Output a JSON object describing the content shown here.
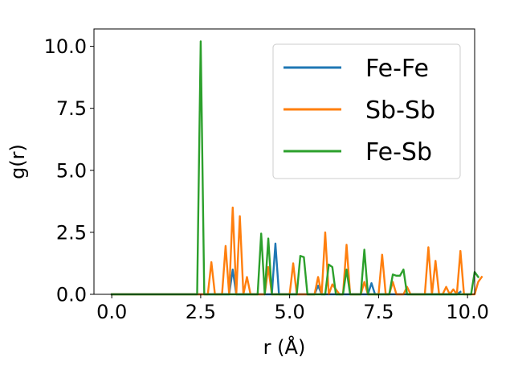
{
  "chart_data": {
    "type": "line",
    "xlabel": "r (Å)",
    "ylabel": "g(r)",
    "xlim": [
      -0.5,
      10.2
    ],
    "ylim": [
      0,
      10.7
    ],
    "xticks": [
      "0.0",
      "2.5",
      "5.0",
      "7.5",
      "10.0"
    ],
    "yticks": [
      "0.0",
      "2.5",
      "5.0",
      "7.5",
      "10.0"
    ],
    "grid": false,
    "legend_position": "top-right",
    "x_start": 0.0,
    "x_step": 0.1,
    "series": [
      {
        "name": "Fe-Fe",
        "color": "#1f77b4",
        "values": [
          0,
          0,
          0,
          0,
          0,
          0,
          0,
          0,
          0,
          0,
          0,
          0,
          0,
          0,
          0,
          0,
          0,
          0,
          0,
          0,
          0,
          0,
          0,
          0,
          0,
          0,
          0,
          0,
          0,
          0,
          0,
          0,
          0,
          0,
          1.0,
          0,
          0,
          0,
          0,
          0,
          0,
          0,
          0,
          0,
          0,
          0,
          2.05,
          0,
          0,
          0,
          0,
          0,
          0,
          0,
          0,
          0,
          0,
          0,
          0.35,
          0,
          0,
          0,
          0,
          0,
          0,
          0,
          0,
          0,
          0,
          0,
          0,
          0,
          0,
          0.45,
          0,
          0,
          0,
          0,
          0,
          0,
          0,
          0,
          0,
          0,
          0,
          0,
          0,
          0,
          0,
          0,
          0,
          0,
          0,
          0,
          0,
          0,
          0,
          0,
          0.1
        ]
      },
      {
        "name": "Sb-Sb",
        "color": "#ff7f0e",
        "values": [
          0,
          0,
          0,
          0,
          0,
          0,
          0,
          0,
          0,
          0,
          0,
          0,
          0,
          0,
          0,
          0,
          0,
          0,
          0,
          0,
          0,
          0,
          0,
          0,
          0,
          0,
          0,
          0,
          1.3,
          0,
          0,
          0,
          1.95,
          0,
          3.5,
          0,
          3.15,
          0,
          0.7,
          0,
          0,
          0,
          0,
          0,
          1.1,
          0,
          0,
          0,
          0,
          0,
          0,
          1.25,
          0,
          0,
          0,
          0,
          0,
          0,
          0.7,
          0,
          2.5,
          0,
          0.4,
          0.2,
          0,
          0,
          2.0,
          0,
          0,
          0,
          0,
          0.5,
          0,
          0,
          0,
          0,
          1.6,
          0,
          0,
          0.5,
          0,
          0,
          0,
          0.3,
          0,
          0,
          0,
          0,
          0,
          1.9,
          0,
          1.35,
          0,
          0,
          0.3,
          0,
          0.2,
          0,
          1.75,
          0,
          0,
          0,
          0,
          0.5,
          0.7
        ]
      },
      {
        "name": "Fe-Sb",
        "color": "#2ca02c",
        "values": [
          0,
          0,
          0,
          0,
          0,
          0,
          0,
          0,
          0,
          0,
          0,
          0,
          0,
          0,
          0,
          0,
          0,
          0,
          0,
          0,
          0,
          0,
          0,
          0,
          0,
          10.2,
          0,
          0,
          0,
          0,
          0,
          0,
          0,
          0,
          0,
          0,
          0,
          0,
          0,
          0,
          0,
          0,
          2.45,
          0,
          2.25,
          0,
          0,
          0,
          0,
          0,
          0,
          0,
          0,
          1.55,
          1.5,
          0,
          0,
          0,
          0,
          0,
          0,
          1.2,
          1.1,
          0,
          0,
          0,
          1.0,
          0,
          0,
          0,
          0,
          1.8,
          0,
          0,
          0,
          0,
          0,
          0,
          0,
          0.8,
          0.75,
          0.75,
          1.0,
          0,
          0,
          0,
          0,
          0,
          0,
          0,
          0,
          0,
          0,
          0,
          0,
          0,
          0,
          0,
          0,
          0,
          0,
          0,
          0.9,
          0.7
        ]
      }
    ]
  }
}
